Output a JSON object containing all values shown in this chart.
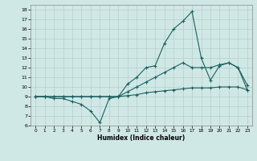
{
  "xlabel": "Humidex (Indice chaleur)",
  "xlim": [
    -0.5,
    23.5
  ],
  "ylim": [
    6,
    18.5
  ],
  "yticks": [
    6,
    7,
    8,
    9,
    10,
    11,
    12,
    13,
    14,
    15,
    16,
    17,
    18
  ],
  "xticks": [
    0,
    1,
    2,
    3,
    4,
    5,
    6,
    7,
    8,
    9,
    10,
    11,
    12,
    13,
    14,
    15,
    16,
    17,
    18,
    19,
    20,
    21,
    22,
    23
  ],
  "background_color": "#cfe8e5",
  "grid_color": "#b0c8c4",
  "line_color": "#1a6060",
  "line1_y": [
    9.0,
    9.0,
    8.8,
    8.8,
    8.5,
    8.2,
    7.5,
    6.3,
    8.8,
    9.0,
    10.3,
    11.0,
    12.0,
    12.2,
    14.5,
    16.0,
    16.8,
    17.8,
    13.0,
    10.7,
    12.2,
    12.5,
    12.0,
    10.2
  ],
  "line2_y": [
    9.0,
    9.0,
    9.0,
    9.0,
    9.0,
    9.0,
    9.0,
    9.0,
    9.0,
    9.0,
    9.5,
    10.0,
    10.5,
    11.0,
    11.5,
    12.0,
    12.5,
    12.0,
    12.0,
    12.0,
    12.3,
    12.5,
    12.0,
    9.7
  ],
  "line3_y": [
    9.0,
    9.0,
    9.0,
    9.0,
    9.0,
    9.0,
    9.0,
    9.0,
    9.0,
    9.0,
    9.1,
    9.2,
    9.4,
    9.5,
    9.6,
    9.7,
    9.8,
    9.9,
    9.9,
    9.9,
    10.0,
    10.0,
    10.0,
    9.7
  ]
}
